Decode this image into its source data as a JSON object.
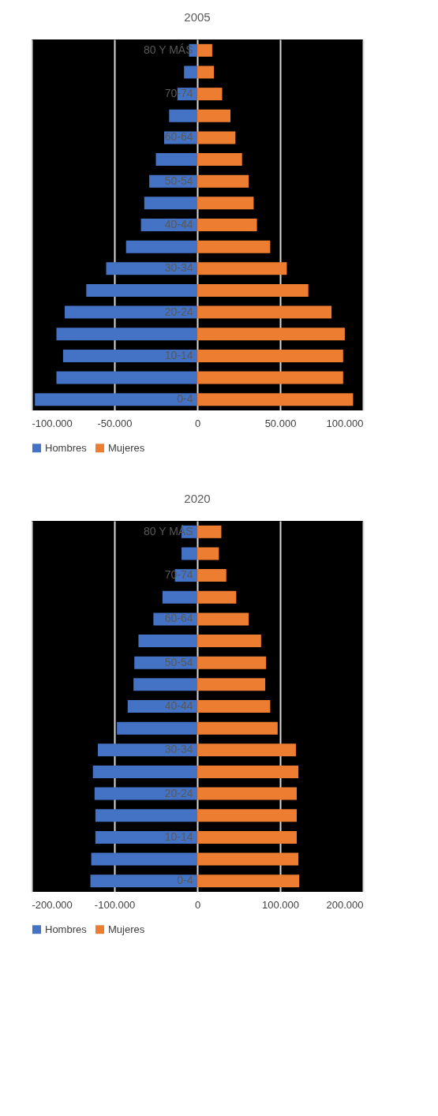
{
  "chart_data": [
    {
      "type": "bar",
      "orientation": "horizontal",
      "stacked": true,
      "title": "2005",
      "categories": [
        "80 Y MÁS",
        null,
        "70-74",
        null,
        "60-64",
        null,
        "50-54",
        null,
        "40-44",
        null,
        "30-34",
        null,
        "20-24",
        null,
        "10-14",
        null,
        "0-4"
      ],
      "series": [
        {
          "name": "Hombres",
          "color": "#4472c4",
          "values": [
            -5000,
            -8000,
            -12000,
            -17000,
            -20000,
            -25000,
            -29000,
            -32000,
            -34000,
            -43000,
            -55000,
            -67000,
            -80000,
            -85000,
            -81000,
            -85000,
            -98000
          ]
        },
        {
          "name": "Mujeres",
          "color": "#ed7d31",
          "values": [
            9000,
            10000,
            15000,
            20000,
            23000,
            27000,
            31000,
            34000,
            36000,
            44000,
            54000,
            67000,
            81000,
            89000,
            88000,
            88000,
            94000
          ]
        }
      ],
      "xlim": [
        -100000,
        100000
      ],
      "xticks": [
        {
          "value": -100000,
          "label": "-100.000"
        },
        {
          "value": -50000,
          "label": "-50.000"
        },
        0,
        {
          "value": 50000,
          "label": "50.000"
        },
        {
          "value": 100000,
          "label": "100.000"
        }
      ],
      "grid": "x",
      "legend": "bottom"
    },
    {
      "type": "bar",
      "orientation": "horizontal",
      "stacked": true,
      "title": "2020",
      "categories": [
        "80 Y MÁS",
        null,
        "70-74",
        null,
        "60-64",
        null,
        "50-54",
        null,
        "40-44",
        null,
        "30-34",
        null,
        "20-24",
        null,
        "10-14",
        null,
        "0-4"
      ],
      "series": [
        {
          "name": "Hombres",
          "color": "#4472c4",
          "values": [
            -19000,
            -19000,
            -27000,
            -42000,
            -53000,
            -71000,
            -76000,
            -77000,
            -84000,
            -97000,
            -120000,
            -126000,
            -124000,
            -123000,
            -123000,
            -128000,
            -129000
          ]
        },
        {
          "name": "Mujeres",
          "color": "#ed7d31",
          "values": [
            29000,
            26000,
            35000,
            47000,
            62000,
            77000,
            83000,
            82000,
            88000,
            97000,
            119000,
            122000,
            120000,
            120000,
            120000,
            122000,
            123000
          ]
        }
      ],
      "xlim": [
        -200000,
        200000
      ],
      "xticks": [
        {
          "value": -200000,
          "label": "-200.000"
        },
        {
          "value": -100000,
          "label": "-100.000"
        },
        0,
        {
          "value": 100000,
          "label": "100.000"
        },
        {
          "value": 200000,
          "label": "200.000"
        }
      ],
      "grid": "x",
      "legend": "bottom"
    }
  ]
}
